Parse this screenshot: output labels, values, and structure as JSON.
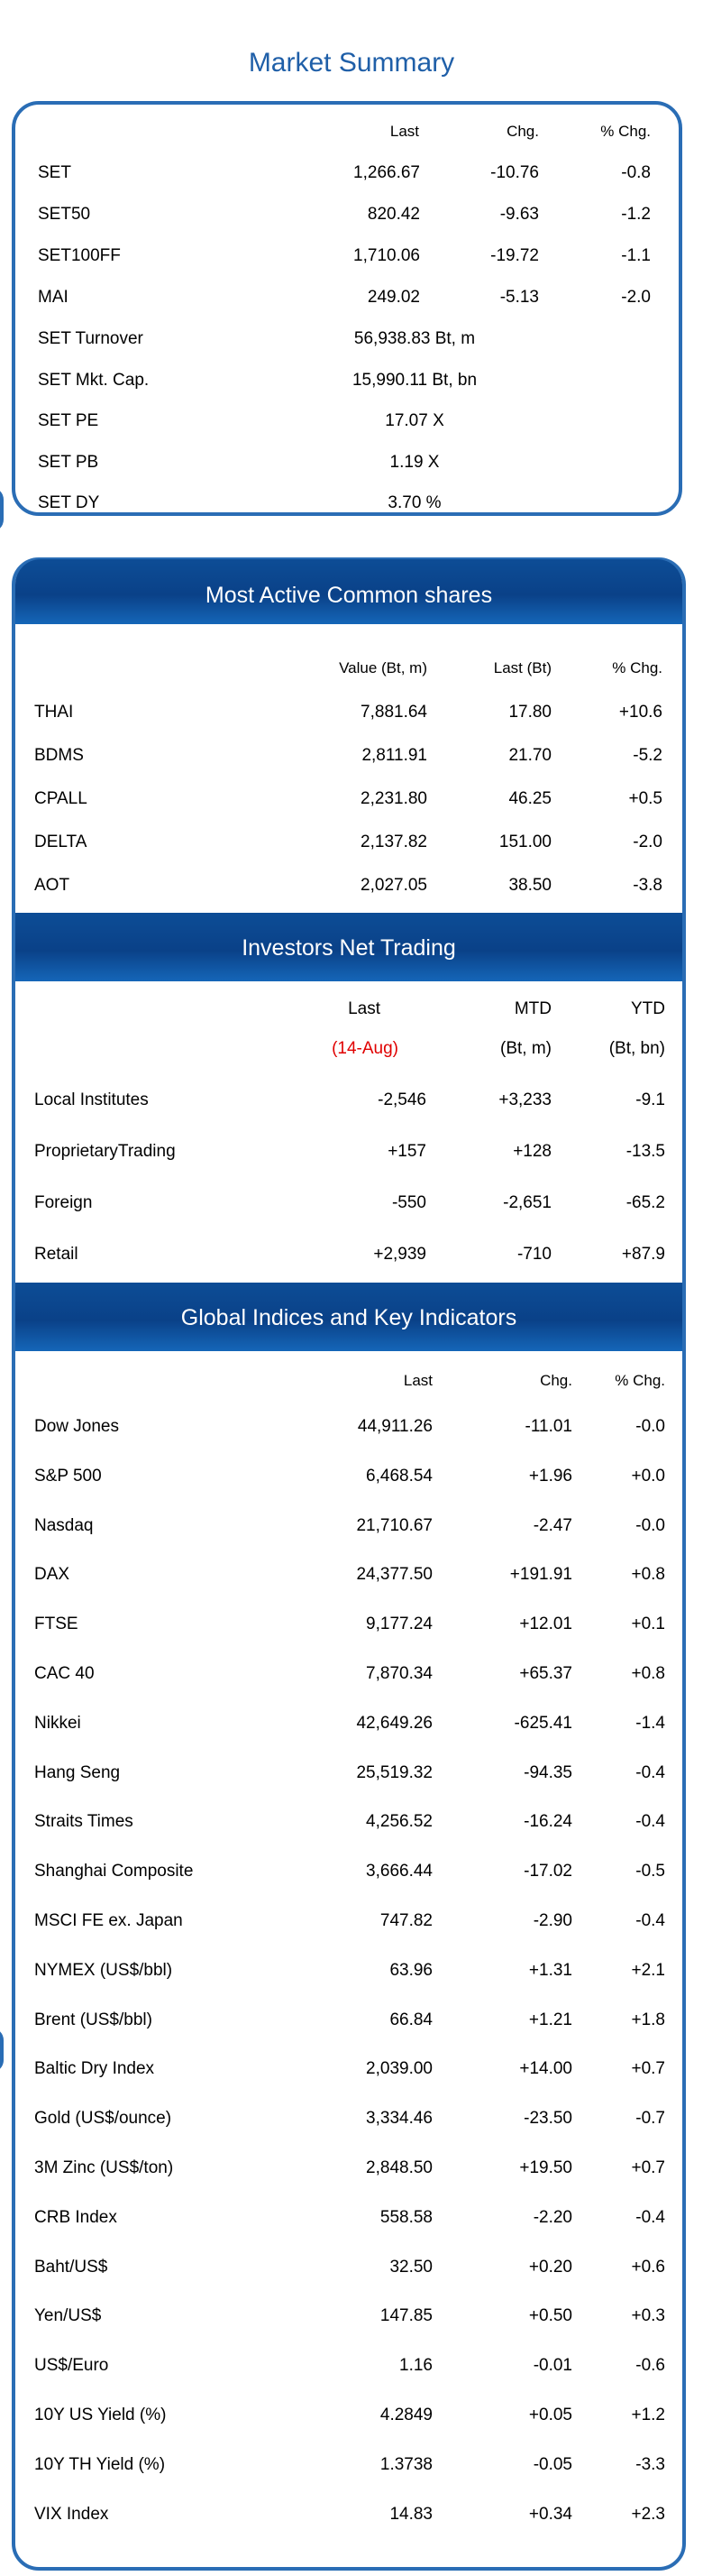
{
  "market_summary": {
    "title": "Market Summary",
    "headers": {
      "last": "Last",
      "chg": "Chg.",
      "pct": "% Chg."
    },
    "rows": [
      {
        "name": "SET",
        "last": "1,266.67",
        "chg": "-10.76",
        "pct": "-0.8"
      },
      {
        "name": "SET50",
        "last": "820.42",
        "chg": "-9.63",
        "pct": "-1.2"
      },
      {
        "name": "SET100FF",
        "last": "1,710.06",
        "chg": "-19.72",
        "pct": "-1.1"
      },
      {
        "name": "MAI",
        "last": "249.02",
        "chg": "-5.13",
        "pct": "-2.0"
      }
    ],
    "info_rows": [
      {
        "name": "SET  Turnover",
        "value": "56,938.83 Bt, m"
      },
      {
        "name": "SET  Mkt. Cap.",
        "value": "15,990.11 Bt, bn"
      },
      {
        "name": "SET  PE",
        "value": "17.07 X"
      },
      {
        "name": "SET  PB",
        "value": "1.19 X"
      },
      {
        "name": "SET  DY",
        "value": "3.70 %"
      }
    ]
  },
  "most_active": {
    "title": "Most Active Common shares",
    "headers": {
      "value": "Value (Bt, m)",
      "last": "Last (Bt)",
      "pct": "% Chg."
    },
    "rows": [
      {
        "name": "THAI",
        "value": "7,881.64",
        "last": "17.80",
        "pct": "+10.6"
      },
      {
        "name": "BDMS",
        "value": "2,811.91",
        "last": "21.70",
        "pct": "-5.2"
      },
      {
        "name": "CPALL",
        "value": "2,231.80",
        "last": "46.25",
        "pct": "+0.5"
      },
      {
        "name": "DELTA",
        "value": "2,137.82",
        "last": "151.00",
        "pct": "-2.0"
      },
      {
        "name": "AOT",
        "value": "2,027.05",
        "last": "38.50",
        "pct": "-3.8"
      }
    ]
  },
  "investors": {
    "title": "Investors Net Trading",
    "headers": {
      "last": "Last",
      "mtd": "MTD",
      "ytd": "YTD"
    },
    "subheaders": {
      "last": "(14-Aug)",
      "mtd": "(Bt, m)",
      "ytd": "(Bt, bn)"
    },
    "rows": [
      {
        "name": "Local Institutes",
        "last": "-2,546",
        "mtd": "+3,233",
        "ytd": "-9.1"
      },
      {
        "name": "ProprietaryTrading",
        "last": "+157",
        "mtd": "+128",
        "ytd": "-13.5"
      },
      {
        "name": "Foreign",
        "last": "-550",
        "mtd": "-2,651",
        "ytd": "-65.2"
      },
      {
        "name": "Retail",
        "last": "+2,939",
        "mtd": "-710",
        "ytd": "+87.9"
      }
    ]
  },
  "global": {
    "title": "Global Indices and Key Indicators",
    "headers": {
      "last": "Last",
      "chg": "Chg.",
      "pct": "% Chg."
    },
    "rows": [
      {
        "name": "Dow Jones",
        "last": "44,911.26",
        "chg": "-11.01",
        "pct": "-0.0"
      },
      {
        "name": "S&P 500",
        "last": "6,468.54",
        "chg": "+1.96",
        "pct": "+0.0"
      },
      {
        "name": "Nasdaq",
        "last": "21,710.67",
        "chg": "-2.47",
        "pct": "-0.0"
      },
      {
        "name": "DAX",
        "last": "24,377.50",
        "chg": "+191.91",
        "pct": "+0.8"
      },
      {
        "name": "FTSE",
        "last": "9,177.24",
        "chg": "+12.01",
        "pct": "+0.1"
      },
      {
        "name": "CAC 40",
        "last": "7,870.34",
        "chg": "+65.37",
        "pct": "+0.8"
      },
      {
        "name": "Nikkei",
        "last": "42,649.26",
        "chg": "-625.41",
        "pct": "-1.4"
      },
      {
        "name": "Hang Seng",
        "last": "25,519.32",
        "chg": "-94.35",
        "pct": "-0.4"
      },
      {
        "name": "Straits Times",
        "last": "4,256.52",
        "chg": "-16.24",
        "pct": "-0.4"
      },
      {
        "name": "Shanghai Composite",
        "last": "3,666.44",
        "chg": "-17.02",
        "pct": "-0.5"
      },
      {
        "name": "MSCI FE ex. Japan",
        "last": "747.82",
        "chg": "-2.90",
        "pct": "-0.4"
      },
      {
        "name": "NYMEX (US$/bbl)",
        "last": "63.96",
        "chg": "+1.31",
        "pct": "+2.1"
      },
      {
        "name": "Brent (US$/bbl)",
        "last": "66.84",
        "chg": "+1.21",
        "pct": "+1.8"
      },
      {
        "name": "Baltic Dry Index",
        "last": "2,039.00",
        "chg": "+14.00",
        "pct": "+0.7"
      },
      {
        "name": "Gold (US$/ounce)",
        "last": "3,334.46",
        "chg": "-23.50",
        "pct": "-0.7"
      },
      {
        "name": "3M Zinc (US$/ton)",
        "last": "2,848.50",
        "chg": "+19.50",
        "pct": "+0.7"
      },
      {
        "name": "CRB Index",
        "last": "558.58",
        "chg": "-2.20",
        "pct": "-0.4"
      },
      {
        "name": "Baht/US$",
        "last": "32.50",
        "chg": "+0.20",
        "pct": "+0.6"
      },
      {
        "name": "Yen/US$",
        "last": "147.85",
        "chg": "+0.50",
        "pct": "+0.3"
      },
      {
        "name": "US$/Euro",
        "last": "1.16",
        "chg": "-0.01",
        "pct": "-0.6"
      },
      {
        "name": "10Y US Yield (%)",
        "last": "4.2849",
        "chg": "+0.05",
        "pct": "+1.2"
      },
      {
        "name": "10Y TH Yield (%)",
        "last": "1.3738",
        "chg": "-0.05",
        "pct": "-3.3"
      },
      {
        "name": "VIX Index",
        "last": "14.83",
        "chg": "+0.34",
        "pct": "+2.3"
      }
    ]
  },
  "colors": {
    "accent": "#2a6db5",
    "header_bg": "#0a4188",
    "negative_label": "#e00000"
  }
}
